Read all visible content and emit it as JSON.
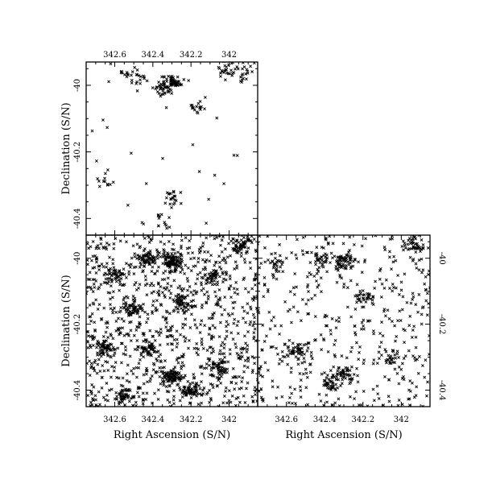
{
  "chart_data": [
    {
      "type": "scatter",
      "panel": "top-left",
      "marker": "x",
      "xlabel": "",
      "ylabel": "Declination (S/N)",
      "xlim": [
        342.75,
        341.85
      ],
      "ylim": [
        -40.45,
        -39.93
      ],
      "x_ticks": [
        342.6,
        342.4,
        342.2,
        342.0
      ],
      "x_tick_labels": [
        "342.6",
        "342.4",
        "342.2",
        "342"
      ],
      "x_tick_labels_position": "top",
      "y_ticks": [
        -40.0,
        -40.2,
        -40.4
      ],
      "y_tick_labels": [
        "-40",
        "-40.2",
        "-40.4"
      ],
      "y_tick_labels_position": "left",
      "density": "sparse",
      "clusters": [
        {
          "x": 342.3,
          "y": -39.99,
          "weight": 18
        },
        {
          "x": 342.35,
          "y": -40.01,
          "weight": 6
        },
        {
          "x": 342.47,
          "y": -39.98,
          "weight": 4
        },
        {
          "x": 342.54,
          "y": -39.97,
          "weight": 3
        },
        {
          "x": 342.01,
          "y": -39.95,
          "weight": 6
        },
        {
          "x": 341.93,
          "y": -39.96,
          "weight": 5
        },
        {
          "x": 342.18,
          "y": -40.07,
          "weight": 4
        },
        {
          "x": 342.3,
          "y": -40.34,
          "weight": 5
        },
        {
          "x": 342.34,
          "y": -40.41,
          "weight": 3
        },
        {
          "x": 342.65,
          "y": -40.29,
          "weight": 3
        }
      ]
    },
    {
      "type": "scatter",
      "panel": "bottom-left",
      "marker": "x",
      "xlabel": "Right Ascension (S/N)",
      "ylabel": "Declination (S/N)",
      "xlim": [
        342.75,
        341.85
      ],
      "ylim": [
        -40.45,
        -39.93
      ],
      "x_ticks": [
        342.6,
        342.4,
        342.2,
        342.0
      ],
      "x_tick_labels": [
        "342.6",
        "342.4",
        "342.2",
        "342"
      ],
      "x_tick_labels_position": "bottom",
      "y_ticks": [
        -40.0,
        -40.2,
        -40.4
      ],
      "y_tick_labels": [
        "-40",
        "-40.2",
        "-40.4"
      ],
      "y_tick_labels_position": "left",
      "density": "dense",
      "clusters": [
        {
          "x": 342.3,
          "y": -40.01,
          "weight": 22
        },
        {
          "x": 342.42,
          "y": -40.0,
          "weight": 14
        },
        {
          "x": 342.6,
          "y": -40.05,
          "weight": 10
        },
        {
          "x": 342.08,
          "y": -40.05,
          "weight": 10
        },
        {
          "x": 341.93,
          "y": -39.96,
          "weight": 12
        },
        {
          "x": 342.65,
          "y": -40.27,
          "weight": 14
        },
        {
          "x": 342.5,
          "y": -40.15,
          "weight": 12
        },
        {
          "x": 342.25,
          "y": -40.13,
          "weight": 10
        },
        {
          "x": 342.3,
          "y": -40.36,
          "weight": 20
        },
        {
          "x": 342.2,
          "y": -40.4,
          "weight": 14
        },
        {
          "x": 342.05,
          "y": -40.33,
          "weight": 10
        },
        {
          "x": 342.55,
          "y": -40.42,
          "weight": 10
        },
        {
          "x": 342.42,
          "y": -40.28,
          "weight": 10
        }
      ]
    },
    {
      "type": "scatter",
      "panel": "bottom-right",
      "marker": "x",
      "xlabel": "Right Ascension (S/N)",
      "ylabel": "",
      "xlim": [
        342.75,
        341.85
      ],
      "ylim": [
        -40.45,
        -39.93
      ],
      "x_ticks": [
        342.6,
        342.4,
        342.2,
        342.0
      ],
      "x_tick_labels": [
        "342.6",
        "342.4",
        "342.2",
        "342"
      ],
      "x_tick_labels_position": "bottom",
      "y_ticks": [
        -40.0,
        -40.2,
        -40.4
      ],
      "y_tick_labels": [
        "-40",
        "-40.2",
        "-40.4"
      ],
      "y_tick_labels_position": "right",
      "density": "medium",
      "clusters": [
        {
          "x": 342.3,
          "y": -40.01,
          "weight": 14
        },
        {
          "x": 342.42,
          "y": -40.0,
          "weight": 8
        },
        {
          "x": 341.93,
          "y": -39.96,
          "weight": 10
        },
        {
          "x": 342.65,
          "y": -40.02,
          "weight": 6
        },
        {
          "x": 342.55,
          "y": -40.28,
          "weight": 10
        },
        {
          "x": 342.3,
          "y": -40.35,
          "weight": 10
        },
        {
          "x": 342.38,
          "y": -40.38,
          "weight": 8
        },
        {
          "x": 342.05,
          "y": -40.3,
          "weight": 6
        },
        {
          "x": 342.2,
          "y": -40.12,
          "weight": 6
        }
      ]
    }
  ]
}
